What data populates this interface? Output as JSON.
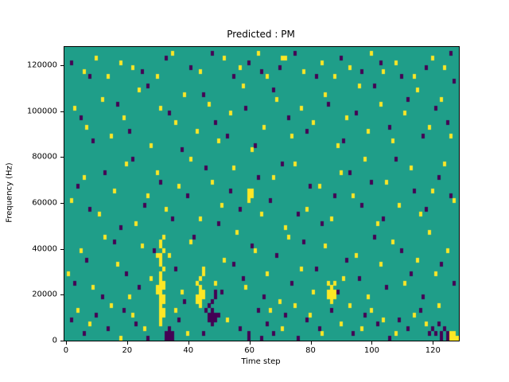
{
  "chart_data": {
    "type": "heatmap",
    "title": "Predicted : PM",
    "xlabel": "Time step",
    "ylabel": "Frequency (Hz)",
    "x_ticks": [
      0,
      20,
      40,
      60,
      80,
      100,
      120
    ],
    "y_ticks": [
      0,
      20000,
      40000,
      60000,
      80000,
      100000,
      120000
    ],
    "x_range": [
      0,
      129
    ],
    "y_range_hz": [
      0,
      128000
    ],
    "legend": "none",
    "grid": {
      "cols": 129,
      "rows": 64,
      "freq_per_row": 2000,
      "y_max_hz": 128000
    },
    "colors": {
      "background": "#1f9e89",
      "high": "#fde725",
      "low": "#440154"
    },
    "cells": {
      "yellow": [
        [
          6,
          58
        ],
        [
          10,
          61
        ],
        [
          14,
          57
        ],
        [
          18,
          60
        ],
        [
          22,
          59
        ],
        [
          30,
          57
        ],
        [
          35,
          62
        ],
        [
          44,
          58
        ],
        [
          52,
          61
        ],
        [
          57,
          59
        ],
        [
          63,
          62
        ],
        [
          66,
          57
        ],
        [
          71,
          61
        ],
        [
          72,
          61
        ],
        [
          78,
          58
        ],
        [
          84,
          60
        ],
        [
          88,
          57
        ],
        [
          93,
          59
        ],
        [
          100,
          62
        ],
        [
          104,
          58
        ],
        [
          108,
          60
        ],
        [
          114,
          57
        ],
        [
          120,
          61
        ],
        [
          124,
          59
        ],
        [
          3,
          50
        ],
        [
          7,
          46
        ],
        [
          12,
          52
        ],
        [
          15,
          44
        ],
        [
          19,
          48
        ],
        [
          24,
          54
        ],
        [
          28,
          42
        ],
        [
          31,
          50
        ],
        [
          36,
          47
        ],
        [
          39,
          53
        ],
        [
          43,
          45
        ],
        [
          47,
          51
        ],
        [
          50,
          43
        ],
        [
          54,
          49
        ],
        [
          58,
          55
        ],
        [
          61,
          41
        ],
        [
          65,
          46
        ],
        [
          69,
          52
        ],
        [
          74,
          44
        ],
        [
          77,
          50
        ],
        [
          81,
          47
        ],
        [
          85,
          53
        ],
        [
          89,
          42
        ],
        [
          92,
          48
        ],
        [
          96,
          55
        ],
        [
          99,
          45
        ],
        [
          103,
          51
        ],
        [
          107,
          43
        ],
        [
          111,
          49
        ],
        [
          115,
          54
        ],
        [
          119,
          46
        ],
        [
          123,
          52
        ],
        [
          126,
          44
        ],
        [
          2,
          30
        ],
        [
          6,
          35
        ],
        [
          11,
          27
        ],
        [
          16,
          32
        ],
        [
          20,
          38
        ],
        [
          23,
          25
        ],
        [
          27,
          31
        ],
        [
          30,
          36
        ],
        [
          33,
          28
        ],
        [
          37,
          33
        ],
        [
          41,
          39
        ],
        [
          44,
          26
        ],
        [
          48,
          34
        ],
        [
          51,
          29
        ],
        [
          55,
          37
        ],
        [
          60,
          30
        ],
        [
          60,
          31
        ],
        [
          60,
          32
        ],
        [
          61,
          31
        ],
        [
          61,
          32
        ],
        [
          64,
          27
        ],
        [
          68,
          35
        ],
        [
          72,
          24
        ],
        [
          75,
          38
        ],
        [
          79,
          28
        ],
        [
          83,
          33
        ],
        [
          87,
          26
        ],
        [
          90,
          36
        ],
        [
          94,
          31
        ],
        [
          98,
          39
        ],
        [
          102,
          25
        ],
        [
          105,
          34
        ],
        [
          109,
          29
        ],
        [
          113,
          37
        ],
        [
          116,
          27
        ],
        [
          120,
          32
        ],
        [
          124,
          38
        ],
        [
          127,
          30
        ],
        [
          30,
          10
        ],
        [
          30,
          11
        ],
        [
          30,
          18
        ],
        [
          31,
          3
        ],
        [
          31,
          4
        ],
        [
          31,
          5
        ],
        [
          31,
          6
        ],
        [
          31,
          7
        ],
        [
          31,
          8
        ],
        [
          31,
          9
        ],
        [
          31,
          10
        ],
        [
          31,
          11
        ],
        [
          31,
          12
        ],
        [
          31,
          13
        ],
        [
          31,
          14
        ],
        [
          31,
          16
        ],
        [
          31,
          17
        ],
        [
          31,
          18
        ],
        [
          31,
          20
        ],
        [
          31,
          21
        ],
        [
          32,
          5
        ],
        [
          32,
          6
        ],
        [
          32,
          8
        ],
        [
          32,
          9
        ],
        [
          32,
          11
        ],
        [
          32,
          12
        ],
        [
          32,
          15
        ],
        [
          32,
          19
        ],
        [
          32,
          22
        ],
        [
          43,
          8
        ],
        [
          43,
          9
        ],
        [
          43,
          12
        ],
        [
          44,
          7
        ],
        [
          44,
          8
        ],
        [
          44,
          9
        ],
        [
          44,
          10
        ],
        [
          44,
          11
        ],
        [
          44,
          13
        ],
        [
          45,
          9
        ],
        [
          45,
          10
        ],
        [
          45,
          14
        ],
        [
          45,
          15
        ],
        [
          86,
          9
        ],
        [
          86,
          10
        ],
        [
          86,
          12
        ],
        [
          87,
          8
        ],
        [
          87,
          9
        ],
        [
          87,
          10
        ],
        [
          87,
          11
        ],
        [
          88,
          9
        ],
        [
          88,
          10
        ],
        [
          88,
          12
        ],
        [
          1,
          14
        ],
        [
          5,
          19
        ],
        [
          9,
          11
        ],
        [
          13,
          22
        ],
        [
          17,
          16
        ],
        [
          21,
          9
        ],
        [
          25,
          20
        ],
        [
          28,
          13
        ],
        [
          34,
          18
        ],
        [
          38,
          10
        ],
        [
          41,
          21
        ],
        [
          49,
          12
        ],
        [
          52,
          17
        ],
        [
          56,
          23
        ],
        [
          59,
          11
        ],
        [
          62,
          19
        ],
        [
          66,
          14
        ],
        [
          70,
          8
        ],
        [
          73,
          22
        ],
        [
          77,
          15
        ],
        [
          81,
          10
        ],
        [
          85,
          20
        ],
        [
          91,
          13
        ],
        [
          95,
          18
        ],
        [
          99,
          9
        ],
        [
          103,
          16
        ],
        [
          107,
          21
        ],
        [
          111,
          12
        ],
        [
          115,
          17
        ],
        [
          119,
          23
        ],
        [
          121,
          14
        ],
        [
          125,
          19
        ],
        [
          4,
          6
        ],
        [
          8,
          3
        ],
        [
          15,
          7
        ],
        [
          18,
          0
        ],
        [
          22,
          5
        ],
        [
          26,
          2
        ],
        [
          36,
          6
        ],
        [
          40,
          1
        ],
        [
          53,
          4
        ],
        [
          67,
          6
        ],
        [
          71,
          2
        ],
        [
          75,
          7
        ],
        [
          80,
          5
        ],
        [
          84,
          1
        ],
        [
          90,
          3
        ],
        [
          93,
          7
        ],
        [
          97,
          2
        ],
        [
          100,
          6
        ],
        [
          104,
          4
        ],
        [
          108,
          1
        ],
        [
          114,
          5
        ],
        [
          118,
          3
        ],
        [
          122,
          7
        ],
        [
          126,
          0
        ],
        [
          126,
          1
        ],
        [
          127,
          0
        ],
        [
          127,
          1
        ],
        [
          128,
          0
        ]
      ],
      "dark": [
        [
          2,
          60
        ],
        [
          8,
          57
        ],
        [
          25,
          58
        ],
        [
          33,
          61
        ],
        [
          41,
          59
        ],
        [
          48,
          62
        ],
        [
          55,
          57
        ],
        [
          60,
          60
        ],
        [
          64,
          58
        ],
        [
          70,
          59
        ],
        [
          75,
          62
        ],
        [
          82,
          57
        ],
        [
          90,
          61
        ],
        [
          97,
          58
        ],
        [
          103,
          60
        ],
        [
          110,
          57
        ],
        [
          118,
          59
        ],
        [
          126,
          62
        ],
        [
          127,
          56
        ],
        [
          5,
          48
        ],
        [
          9,
          43
        ],
        [
          17,
          51
        ],
        [
          21,
          45
        ],
        [
          27,
          55
        ],
        [
          34,
          49
        ],
        [
          38,
          41
        ],
        [
          45,
          53
        ],
        [
          49,
          47
        ],
        [
          53,
          44
        ],
        [
          59,
          50
        ],
        [
          62,
          42
        ],
        [
          68,
          54
        ],
        [
          73,
          48
        ],
        [
          79,
          45
        ],
        [
          86,
          51
        ],
        [
          91,
          43
        ],
        [
          95,
          49
        ],
        [
          101,
          55
        ],
        [
          106,
          46
        ],
        [
          112,
          52
        ],
        [
          117,
          44
        ],
        [
          121,
          50
        ],
        [
          125,
          47
        ],
        [
          4,
          33
        ],
        [
          8,
          28
        ],
        [
          13,
          36
        ],
        [
          18,
          24
        ],
        [
          22,
          39
        ],
        [
          26,
          29
        ],
        [
          31,
          34
        ],
        [
          35,
          26
        ],
        [
          40,
          31
        ],
        [
          46,
          37
        ],
        [
          50,
          25
        ],
        [
          54,
          32
        ],
        [
          57,
          28
        ],
        [
          63,
          35
        ],
        [
          67,
          30
        ],
        [
          71,
          38
        ],
        [
          76,
          27
        ],
        [
          80,
          33
        ],
        [
          84,
          25
        ],
        [
          88,
          31
        ],
        [
          93,
          36
        ],
        [
          97,
          29
        ],
        [
          100,
          34
        ],
        [
          104,
          26
        ],
        [
          108,
          39
        ],
        [
          114,
          32
        ],
        [
          118,
          28
        ],
        [
          122,
          35
        ],
        [
          126,
          31
        ],
        [
          46,
          6
        ],
        [
          47,
          4
        ],
        [
          47,
          5
        ],
        [
          47,
          7
        ],
        [
          48,
          3
        ],
        [
          48,
          4
        ],
        [
          48,
          5
        ],
        [
          48,
          6
        ],
        [
          48,
          8
        ],
        [
          49,
          4
        ],
        [
          49,
          5
        ],
        [
          49,
          9
        ],
        [
          49,
          10
        ],
        [
          3,
          12
        ],
        [
          7,
          17
        ],
        [
          12,
          9
        ],
        [
          16,
          21
        ],
        [
          20,
          14
        ],
        [
          24,
          11
        ],
        [
          29,
          19
        ],
        [
          36,
          15
        ],
        [
          39,
          8
        ],
        [
          42,
          22
        ],
        [
          51,
          10
        ],
        [
          55,
          16
        ],
        [
          58,
          13
        ],
        [
          61,
          20
        ],
        [
          65,
          9
        ],
        [
          69,
          18
        ],
        [
          74,
          12
        ],
        [
          78,
          21
        ],
        [
          82,
          15
        ],
        [
          89,
          10
        ],
        [
          92,
          17
        ],
        [
          96,
          13
        ],
        [
          101,
          22
        ],
        [
          105,
          11
        ],
        [
          110,
          19
        ],
        [
          113,
          14
        ],
        [
          117,
          9
        ],
        [
          123,
          16
        ],
        [
          127,
          12
        ],
        [
          33,
          0
        ],
        [
          33,
          1
        ],
        [
          34,
          0
        ],
        [
          34,
          1
        ],
        [
          34,
          2
        ],
        [
          35,
          0
        ],
        [
          35,
          1
        ],
        [
          120,
          2
        ],
        [
          121,
          1
        ],
        [
          122,
          3
        ],
        [
          123,
          0
        ],
        [
          123,
          1
        ],
        [
          124,
          2
        ],
        [
          125,
          0
        ],
        [
          125,
          1
        ],
        [
          2,
          4
        ],
        [
          6,
          1
        ],
        [
          10,
          5
        ],
        [
          14,
          2
        ],
        [
          19,
          6
        ],
        [
          23,
          3
        ],
        [
          27,
          0
        ],
        [
          37,
          4
        ],
        [
          45,
          1
        ],
        [
          50,
          5
        ],
        [
          57,
          2
        ],
        [
          60,
          0
        ],
        [
          60,
          1
        ],
        [
          63,
          6
        ],
        [
          64,
          0
        ],
        [
          66,
          3
        ],
        [
          68,
          1
        ],
        [
          72,
          5
        ],
        [
          76,
          0
        ],
        [
          79,
          4
        ],
        [
          83,
          2
        ],
        [
          87,
          6
        ],
        [
          94,
          1
        ],
        [
          98,
          5
        ],
        [
          102,
          3
        ],
        [
          106,
          0
        ],
        [
          109,
          4
        ],
        [
          112,
          2
        ],
        [
          116,
          6
        ],
        [
          119,
          1
        ]
      ]
    }
  }
}
